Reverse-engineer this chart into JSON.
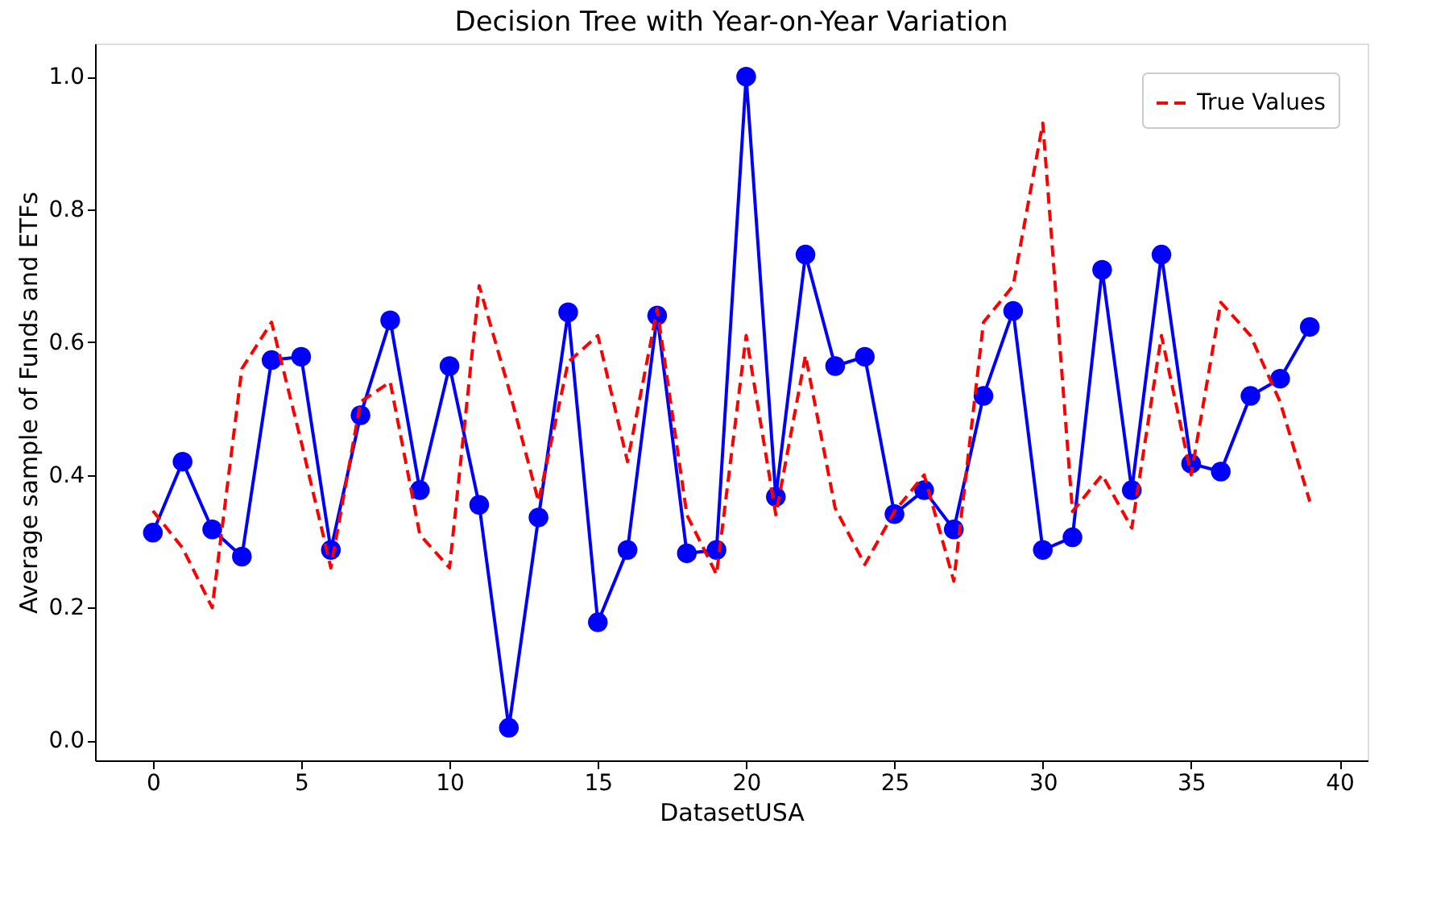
{
  "chart_data": {
    "type": "line",
    "title": "Decision Tree with Year-on-Year Variation",
    "xlabel": "DatasetUSA",
    "ylabel": "Average sample of Funds and ETFs",
    "x": [
      0,
      1,
      2,
      3,
      4,
      5,
      6,
      7,
      8,
      9,
      10,
      11,
      12,
      13,
      14,
      15,
      16,
      17,
      18,
      19,
      20,
      21,
      22,
      23,
      24,
      25,
      26,
      27,
      28,
      29,
      30,
      31,
      32,
      33,
      34,
      35,
      36,
      37,
      38,
      39
    ],
    "series": [
      {
        "color": "#0000ff",
        "marker": "circle",
        "line_style": "solid",
        "values": [
          0.313,
          0.42,
          0.318,
          0.277,
          0.573,
          0.578,
          0.287,
          0.49,
          0.633,
          0.377,
          0.564,
          0.355,
          0.019,
          0.336,
          0.645,
          0.178,
          0.287,
          0.64,
          0.282,
          0.287,
          1.0,
          0.367,
          0.732,
          0.564,
          0.578,
          0.341,
          0.377,
          0.318,
          0.519,
          0.647,
          0.287,
          0.306,
          0.709,
          0.377,
          0.732,
          0.417,
          0.405,
          0.519,
          0.545,
          0.623
        ]
      },
      {
        "name": "True Values",
        "color": "#ff0000",
        "marker": "none",
        "line_style": "dashed",
        "values": [
          0.346,
          0.29,
          0.2,
          0.56,
          0.63,
          0.45,
          0.26,
          0.51,
          0.54,
          0.31,
          0.26,
          0.685,
          0.53,
          0.36,
          0.57,
          0.61,
          0.42,
          0.65,
          0.34,
          0.25,
          0.61,
          0.34,
          0.58,
          0.35,
          0.265,
          0.345,
          0.4,
          0.24,
          0.63,
          0.685,
          0.93,
          0.345,
          0.4,
          0.32,
          0.61,
          0.4,
          0.66,
          0.61,
          0.51,
          0.36
        ]
      }
    ],
    "xlim": [
      -1.95,
      40.95
    ],
    "ylim": [
      -0.03,
      1.05
    ],
    "xticks": [
      0,
      5,
      10,
      15,
      20,
      25,
      30,
      35,
      40
    ],
    "yticks": [
      {
        "value": 0,
        "label": "0.0"
      },
      {
        "value": 0.2,
        "label": "0.2"
      },
      {
        "value": 0.4,
        "label": "0.4"
      },
      {
        "value": 0.6,
        "label": "0.6"
      },
      {
        "value": 0.8,
        "label": "0.8"
      },
      {
        "value": 1.0,
        "label": "1.0"
      }
    ],
    "grid": false,
    "legend": "top right"
  }
}
